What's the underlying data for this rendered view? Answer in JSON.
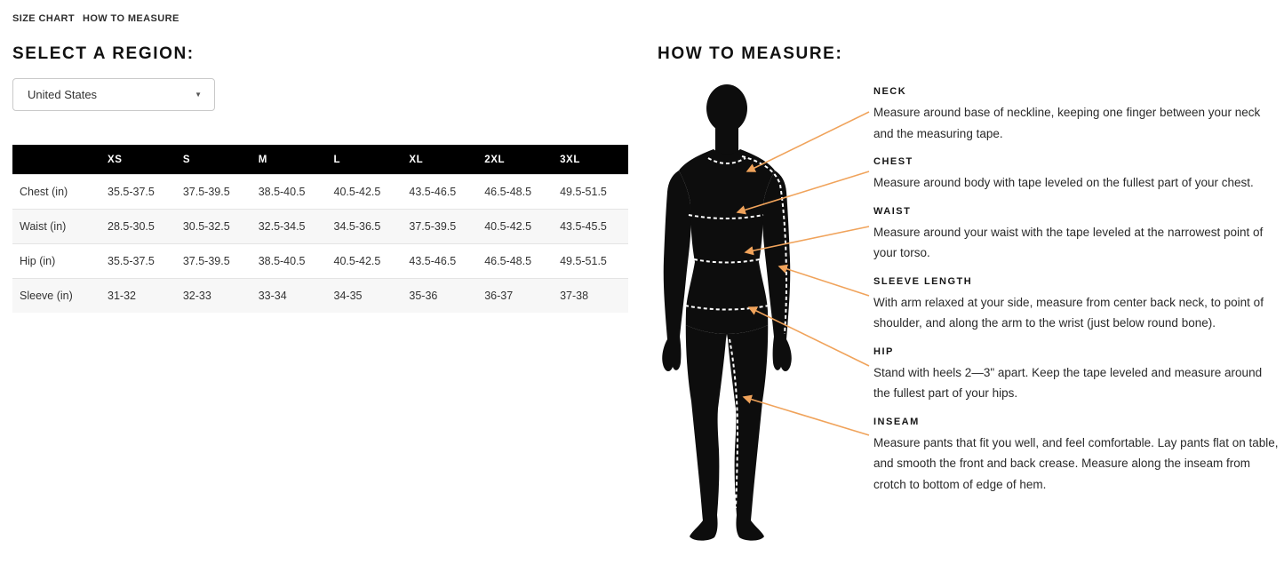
{
  "tabs": [
    {
      "label": "SIZE CHART"
    },
    {
      "label": "HOW TO MEASURE"
    }
  ],
  "region": {
    "heading": "SELECT A REGION:",
    "selected": "United States",
    "caret": "▼"
  },
  "size_table": {
    "columns": [
      "",
      "XS",
      "S",
      "M",
      "L",
      "XL",
      "2XL",
      "3XL"
    ],
    "rows": [
      {
        "label": "Chest (in)",
        "values": [
          "35.5-37.5",
          "37.5-39.5",
          "38.5-40.5",
          "40.5-42.5",
          "43.5-46.5",
          "46.5-48.5",
          "49.5-51.5"
        ]
      },
      {
        "label": "Waist (in)",
        "values": [
          "28.5-30.5",
          "30.5-32.5",
          "32.5-34.5",
          "34.5-36.5",
          "37.5-39.5",
          "40.5-42.5",
          "43.5-45.5"
        ]
      },
      {
        "label": "Hip (in)",
        "values": [
          "35.5-37.5",
          "37.5-39.5",
          "38.5-40.5",
          "40.5-42.5",
          "43.5-46.5",
          "46.5-48.5",
          "49.5-51.5"
        ]
      },
      {
        "label": "Sleeve (in)",
        "values": [
          "31-32",
          "32-33",
          "33-34",
          "34-35",
          "35-36",
          "36-37",
          "37-38"
        ]
      }
    ]
  },
  "how_to_measure": {
    "heading": "HOW TO MEASURE:",
    "sections": [
      {
        "label": "NECK",
        "text": "Measure around base of neckline, keeping one finger between your neck and the measuring tape."
      },
      {
        "label": "CHEST",
        "text": "Measure around body with tape leveled on the fullest part of your chest."
      },
      {
        "label": "WAIST",
        "text": "Measure around your waist with the tape leveled at the narrowest point of your torso."
      },
      {
        "label": "SLEEVE LENGTH",
        "text": "With arm relaxed at your side, measure from center back neck, to point of shoulder, and along the arm to the wrist (just below round bone)."
      },
      {
        "label": "HIP",
        "text": "Stand with heels 2—3\" apart. Keep the tape leveled and measure around the fullest part of your hips."
      },
      {
        "label": "INSEAM",
        "text": "Measure pants that fit you well, and feel comfortable. Lay pants flat on table, and smooth the front and back crease. Measure along the inseam from crotch to bottom of edge of hem."
      }
    ]
  },
  "colors": {
    "arrow_accent": "#F0A35B",
    "table_header_bg": "#000000",
    "silhouette": "#0d0d0d"
  }
}
